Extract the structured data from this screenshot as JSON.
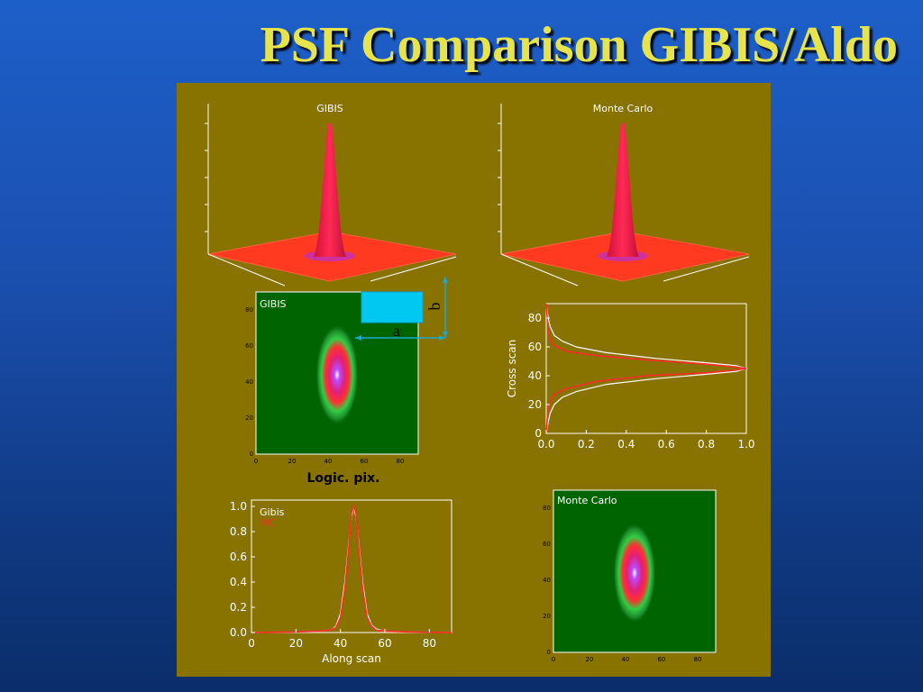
{
  "title": "PSF Comparison GIBIS/Aldo",
  "colors": {
    "panel": "#887200",
    "map_background": "#006400",
    "gibis_line": "#ffffff",
    "mc_line": "#ff2a2a",
    "annotation": "#19a9d4",
    "title": "#e6e44a"
  },
  "surfaces": {
    "left_title": "GIBIS",
    "right_title": "Monte Carlo"
  },
  "annotation": {
    "label_a": "a",
    "label_b": "b",
    "xlabel": "Logic. pix."
  },
  "chart_data": [
    {
      "id": "gibis_surface",
      "type": "surface",
      "title": "GIBIS",
      "peak_x": 45,
      "peak_y": 44,
      "xlim": [
        0,
        90
      ],
      "ylim": [
        0,
        90
      ]
    },
    {
      "id": "mc_surface",
      "type": "surface",
      "title": "Monte Carlo",
      "peak_x": 45,
      "peak_y": 44,
      "xlim": [
        0,
        90
      ],
      "ylim": [
        0,
        90
      ]
    },
    {
      "id": "gibis_map",
      "type": "heatmap",
      "title": "GIBIS",
      "xticks": [
        "0",
        "20",
        "40",
        "60",
        "80"
      ],
      "yticks": [
        "0",
        "20",
        "40",
        "60",
        "80"
      ],
      "xlim": [
        0,
        90
      ],
      "ylim": [
        0,
        90
      ],
      "center": [
        45,
        44
      ],
      "sigma_x": 3,
      "sigma_y": 7
    },
    {
      "id": "cross_scan",
      "type": "line",
      "ylabel": "Cross scan",
      "xticks": [
        "0.0",
        "0.2",
        "0.4",
        "0.6",
        "0.8",
        "1.0"
      ],
      "yticks": [
        "0",
        "20",
        "40",
        "60",
        "80"
      ],
      "xlim": [
        0,
        1.0
      ],
      "ylim": [
        0,
        90
      ],
      "series": [
        {
          "color": "#ffffff",
          "x": [
            0.0,
            0.01,
            0.02,
            0.04,
            0.08,
            0.15,
            0.3,
            0.55,
            0.8,
            0.95,
            1.0,
            0.95,
            0.8,
            0.55,
            0.3,
            0.15,
            0.08,
            0.04,
            0.02,
            0.01,
            0.0
          ],
          "y": [
            0,
            8,
            14,
            20,
            25,
            29,
            34,
            38,
            41,
            43,
            45,
            47,
            49,
            52,
            56,
            60,
            64,
            68,
            74,
            80,
            90
          ]
        },
        {
          "color": "#ff2a2a",
          "x": [
            0.0,
            0.005,
            0.01,
            0.02,
            0.04,
            0.1,
            0.25,
            0.5,
            0.8,
            0.95,
            1.0,
            0.95,
            0.8,
            0.5,
            0.25,
            0.1,
            0.04,
            0.02,
            0.01,
            0.005,
            0.0
          ],
          "y": [
            0,
            10,
            17,
            22,
            27,
            31,
            36,
            40,
            42,
            44,
            45,
            46,
            48,
            51,
            54,
            57,
            61,
            65,
            71,
            80,
            90
          ]
        }
      ]
    },
    {
      "id": "along_scan",
      "type": "line",
      "xlabel": "Along scan",
      "xticks": [
        "0",
        "20",
        "40",
        "60",
        "80"
      ],
      "yticks": [
        "0.0",
        "0.2",
        "0.4",
        "0.6",
        "0.8",
        "1.0"
      ],
      "xlim": [
        0,
        90
      ],
      "ylim": [
        0,
        1.05
      ],
      "legend": [
        "Gibis",
        "MC"
      ],
      "series": [
        {
          "name": "Gibis",
          "color": "#ffffff",
          "x": [
            0,
            20,
            30,
            36,
            38,
            40,
            42,
            44,
            45,
            46,
            47,
            48,
            50,
            52,
            54,
            56,
            60,
            70,
            90
          ],
          "y": [
            0.0,
            0.005,
            0.01,
            0.02,
            0.05,
            0.15,
            0.4,
            0.75,
            0.92,
            1.0,
            0.92,
            0.75,
            0.4,
            0.15,
            0.06,
            0.03,
            0.01,
            0.005,
            0.0
          ]
        },
        {
          "name": "MC",
          "color": "#ff2a2a",
          "x": [
            0,
            20,
            30,
            36,
            38,
            40,
            42,
            44,
            45,
            46,
            47,
            48,
            50,
            52,
            54,
            56,
            60,
            70,
            90
          ],
          "y": [
            0.0,
            0.005,
            0.01,
            0.02,
            0.04,
            0.12,
            0.35,
            0.72,
            0.95,
            1.0,
            0.95,
            0.72,
            0.35,
            0.12,
            0.05,
            0.02,
            0.01,
            0.005,
            0.0
          ]
        }
      ]
    },
    {
      "id": "mc_map",
      "type": "heatmap",
      "title": "Monte Carlo",
      "xticks": [
        "0",
        "20",
        "40",
        "60",
        "80"
      ],
      "yticks": [
        "0",
        "20",
        "40",
        "60",
        "80"
      ],
      "xlim": [
        0,
        90
      ],
      "ylim": [
        0,
        90
      ],
      "center": [
        45,
        44
      ],
      "sigma_x": 3,
      "sigma_y": 7
    }
  ]
}
